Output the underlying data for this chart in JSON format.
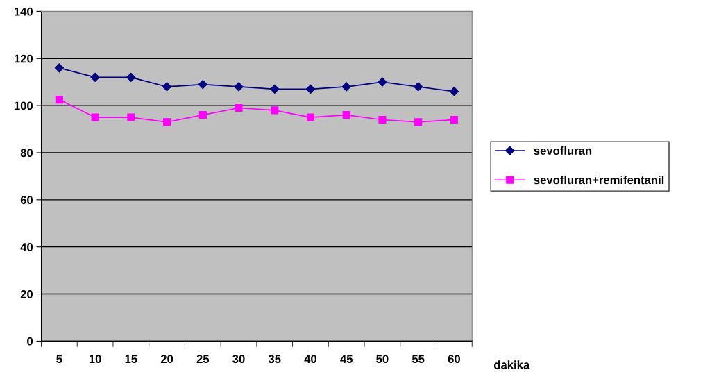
{
  "chart_data": {
    "type": "line",
    "xlabel": "dakika",
    "categories": [
      "5",
      "10",
      "15",
      "20",
      "25",
      "30",
      "35",
      "40",
      "45",
      "50",
      "55",
      "60"
    ],
    "series": [
      {
        "name": "sevofluran",
        "color": "#000080",
        "marker": "diamond",
        "values": [
          116,
          112,
          112,
          108,
          109,
          108,
          107,
          107,
          108,
          110,
          108,
          106
        ]
      },
      {
        "name": "sevofluran+remifentanil",
        "color": "#ff00ff",
        "marker": "square",
        "values": [
          102.5,
          95,
          95,
          93,
          96,
          99,
          98,
          95,
          96,
          94,
          93,
          94
        ]
      }
    ],
    "ylim": [
      0,
      140
    ],
    "yticks": [
      0,
      20,
      40,
      60,
      80,
      100,
      120,
      140
    ],
    "grid": "y",
    "legend": "right",
    "line_style": "solid"
  }
}
